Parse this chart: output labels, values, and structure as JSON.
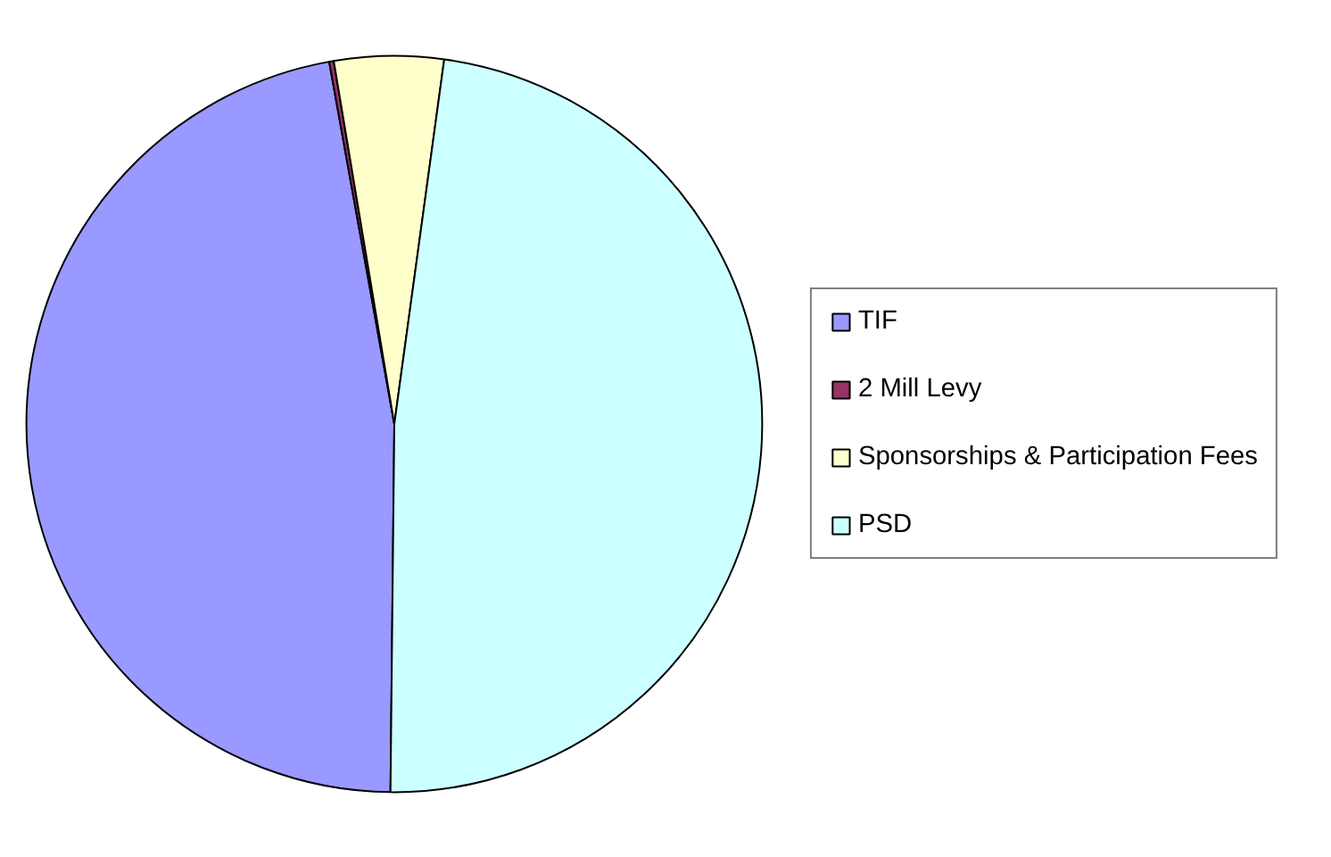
{
  "chart_data": {
    "type": "pie",
    "categories": [
      "TIF",
      "2 Mill Levy",
      "Sponsorships & Participation Fees",
      "PSD"
    ],
    "values": [
      47,
      0.2,
      4.8,
      48
    ],
    "colors": [
      "#9999ff",
      "#993366",
      "#ffffcc",
      "#ccffff"
    ],
    "legend": "right"
  }
}
